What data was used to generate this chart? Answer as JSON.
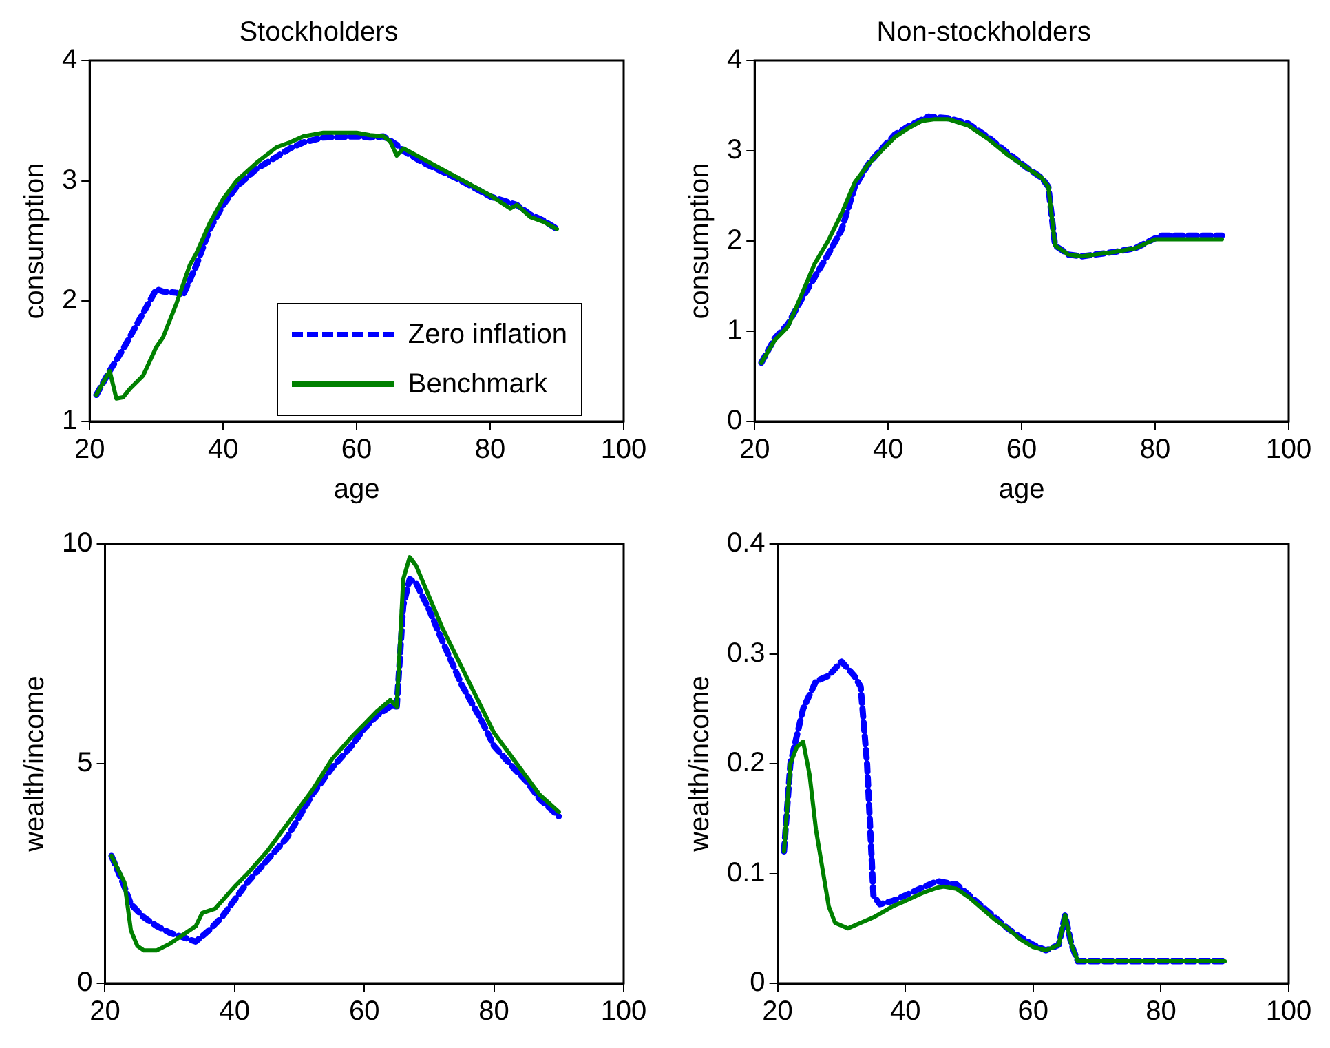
{
  "chart_data": [
    {
      "type": "line",
      "title": "Stockholders",
      "xlabel": "age",
      "ylabel": "consumption",
      "xlim": [
        20,
        100
      ],
      "xticks": [
        20,
        40,
        60,
        80,
        100
      ],
      "ylim": [
        1,
        4
      ],
      "yticks": [
        1,
        2,
        3,
        4
      ],
      "grid": false,
      "legend": "bottom right",
      "series": [
        {
          "name": "Zero inflation",
          "color": "#0000ff",
          "line_style": "dashed",
          "x": [
            21,
            23,
            25,
            27,
            29,
            30,
            31,
            33,
            34,
            36,
            38,
            40,
            42,
            45,
            48,
            50,
            52,
            55,
            60,
            62,
            64,
            66,
            67,
            70,
            75,
            80,
            84,
            86,
            88,
            90
          ],
          "values": [
            1.22,
            1.42,
            1.6,
            1.8,
            2.0,
            2.1,
            2.08,
            2.07,
            2.05,
            2.3,
            2.6,
            2.8,
            2.95,
            3.1,
            3.2,
            3.27,
            3.32,
            3.36,
            3.37,
            3.36,
            3.37,
            3.3,
            3.25,
            3.15,
            3.02,
            2.87,
            2.8,
            2.72,
            2.67,
            2.6
          ]
        },
        {
          "name": "Benchmark",
          "color": "#008000",
          "line_style": "solid",
          "x": [
            21,
            23,
            24,
            25,
            26,
            28,
            30,
            31,
            33,
            35,
            36,
            38,
            40,
            42,
            45,
            48,
            50,
            52,
            55,
            60,
            62,
            64,
            65,
            66,
            67,
            70,
            75,
            80,
            83,
            84,
            86,
            88,
            90
          ],
          "values": [
            1.22,
            1.42,
            1.19,
            1.2,
            1.27,
            1.38,
            1.62,
            1.7,
            1.98,
            2.3,
            2.4,
            2.65,
            2.85,
            3.0,
            3.15,
            3.28,
            3.32,
            3.37,
            3.4,
            3.4,
            3.38,
            3.37,
            3.33,
            3.21,
            3.27,
            3.18,
            3.03,
            2.88,
            2.77,
            2.8,
            2.7,
            2.66,
            2.6
          ]
        }
      ]
    },
    {
      "type": "line",
      "title": "Non-stockholders",
      "xlabel": "age",
      "ylabel": "consumption",
      "xlim": [
        20,
        100
      ],
      "xticks": [
        20,
        40,
        60,
        80,
        100
      ],
      "ylim": [
        0,
        4
      ],
      "yticks": [
        0,
        1,
        2,
        3,
        4
      ],
      "grid": false,
      "series": [
        {
          "color": "#0000ff",
          "line_style": "dashed",
          "x": [
            21,
            23,
            25,
            27,
            29,
            31,
            33,
            35,
            37,
            39,
            41,
            43,
            46,
            49,
            52,
            55,
            58,
            61,
            63,
            64,
            65,
            67,
            69,
            71,
            74,
            77,
            80,
            81,
            90
          ],
          "values": [
            0.65,
            0.92,
            1.08,
            1.35,
            1.6,
            1.85,
            2.12,
            2.6,
            2.85,
            3.02,
            3.18,
            3.27,
            3.38,
            3.36,
            3.3,
            3.15,
            2.97,
            2.8,
            2.7,
            2.6,
            1.95,
            1.85,
            1.83,
            1.85,
            1.88,
            1.92,
            2.03,
            2.06,
            2.06
          ]
        },
        {
          "color": "#008000",
          "line_style": "solid",
          "x": [
            21,
            23,
            25,
            27,
            29,
            31,
            33,
            35,
            37,
            39,
            41,
            43,
            45,
            47,
            49,
            52,
            55,
            58,
            61,
            63,
            64,
            65,
            67,
            69,
            71,
            74,
            77,
            80,
            85,
            90
          ],
          "values": [
            0.65,
            0.9,
            1.05,
            1.4,
            1.75,
            2.0,
            2.3,
            2.65,
            2.85,
            3.0,
            3.15,
            3.25,
            3.33,
            3.35,
            3.35,
            3.28,
            3.13,
            2.95,
            2.8,
            2.7,
            2.6,
            1.95,
            1.85,
            1.83,
            1.85,
            1.88,
            1.92,
            2.02,
            2.02,
            2.02
          ]
        }
      ]
    },
    {
      "type": "line",
      "ylabel": "wealth/income",
      "xlim": [
        20,
        100
      ],
      "xticks": [
        20,
        40,
        60,
        80,
        100
      ],
      "ylim": [
        0,
        10
      ],
      "yticks": [
        0,
        5,
        10
      ],
      "grid": false,
      "series": [
        {
          "color": "#0000ff",
          "line_style": "dashed",
          "x": [
            21,
            23,
            24,
            26,
            28,
            30,
            32,
            34,
            36,
            38,
            40,
            42,
            45,
            48,
            50,
            52,
            55,
            58,
            60,
            62,
            64,
            65,
            66,
            67,
            68,
            70,
            72,
            75,
            78,
            80,
            83,
            85,
            87,
            90
          ],
          "values": [
            2.9,
            2.2,
            1.8,
            1.5,
            1.3,
            1.15,
            1.05,
            0.95,
            1.2,
            1.5,
            1.9,
            2.3,
            2.8,
            3.3,
            3.8,
            4.3,
            4.9,
            5.4,
            5.8,
            6.1,
            6.3,
            6.3,
            8.6,
            9.2,
            9.1,
            8.5,
            7.8,
            6.8,
            6.0,
            5.4,
            4.9,
            4.6,
            4.2,
            3.8
          ]
        },
        {
          "color": "#008000",
          "line_style": "solid",
          "x": [
            21,
            23,
            24,
            25,
            26,
            28,
            30,
            32,
            34,
            35,
            37,
            40,
            42,
            45,
            48,
            50,
            52,
            55,
            58,
            60,
            62,
            64,
            65,
            66,
            67,
            68,
            70,
            72,
            75,
            78,
            80,
            83,
            85,
            87,
            90
          ],
          "values": [
            2.9,
            2.3,
            1.2,
            0.85,
            0.75,
            0.75,
            0.9,
            1.1,
            1.3,
            1.6,
            1.7,
            2.2,
            2.5,
            3.0,
            3.6,
            4.0,
            4.4,
            5.1,
            5.6,
            5.9,
            6.2,
            6.45,
            6.3,
            9.2,
            9.7,
            9.5,
            8.8,
            8.1,
            7.2,
            6.3,
            5.7,
            5.1,
            4.7,
            4.3,
            3.9
          ]
        }
      ]
    },
    {
      "type": "line",
      "ylabel": "wealth/income",
      "xlim": [
        20,
        100
      ],
      "xticks": [
        20,
        40,
        60,
        80,
        100
      ],
      "ylim": [
        0,
        0.4
      ],
      "yticks": [
        0,
        0.1,
        0.2,
        0.3,
        0.4
      ],
      "grid": false,
      "series": [
        {
          "color": "#0000ff",
          "line_style": "dashed",
          "x": [
            21,
            22,
            24,
            26,
            28,
            30,
            32,
            33,
            34,
            35,
            36,
            38,
            40,
            43,
            45,
            48,
            50,
            52,
            54,
            56,
            58,
            60,
            62,
            64,
            65,
            66,
            67,
            90
          ],
          "values": [
            0.12,
            0.2,
            0.25,
            0.275,
            0.28,
            0.293,
            0.28,
            0.27,
            0.2,
            0.08,
            0.072,
            0.075,
            0.08,
            0.088,
            0.093,
            0.09,
            0.08,
            0.07,
            0.06,
            0.05,
            0.042,
            0.035,
            0.03,
            0.035,
            0.062,
            0.035,
            0.02,
            0.02
          ]
        },
        {
          "color": "#008000",
          "line_style": "solid",
          "x": [
            21,
            22,
            23,
            24,
            25,
            26,
            28,
            29,
            31,
            33,
            35,
            38,
            40,
            43,
            45,
            46,
            48,
            50,
            52,
            54,
            56,
            58,
            60,
            62,
            64,
            65,
            66,
            67,
            70,
            90
          ],
          "values": [
            0.12,
            0.2,
            0.215,
            0.22,
            0.19,
            0.14,
            0.07,
            0.055,
            0.05,
            0.055,
            0.06,
            0.07,
            0.075,
            0.083,
            0.087,
            0.088,
            0.086,
            0.078,
            0.068,
            0.058,
            0.05,
            0.04,
            0.033,
            0.03,
            0.035,
            0.062,
            0.035,
            0.02,
            0.02,
            0.02
          ]
        }
      ]
    }
  ]
}
